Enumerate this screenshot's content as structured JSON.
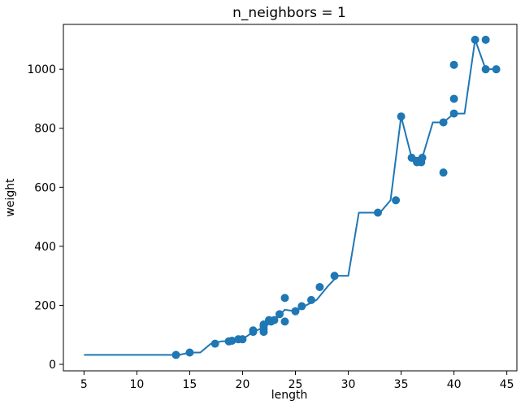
{
  "chart_data": {
    "type": "scatter",
    "title": "n_neighbors = 1",
    "xlabel": "length",
    "ylabel": "weight",
    "xlim": [
      3.05,
      45.95
    ],
    "ylim": [
      -22.0,
      1152.0
    ],
    "xticks": [
      5,
      10,
      15,
      20,
      25,
      30,
      35,
      40,
      45
    ],
    "yticks": [
      0,
      200,
      400,
      600,
      800,
      1000
    ],
    "grid": false,
    "colors": {
      "series": "#1f77b4"
    },
    "series": [
      {
        "type": "scatter",
        "x": [
          13.7,
          15.0,
          17.4,
          18.7,
          19.0,
          19.6,
          20.0,
          21.0,
          21.0,
          22.0,
          22.0,
          22.0,
          22.0,
          22.5,
          22.7,
          23.0,
          23.5,
          24.0,
          24.0,
          25.0,
          25.6,
          26.5,
          27.3,
          28.7,
          32.8,
          34.5,
          35.0,
          36.0,
          36.5,
          36.9,
          37.0,
          39.0,
          39.0,
          40.0,
          40.0,
          40.0,
          42.0,
          43.0,
          43.0,
          44.0
        ],
        "y": [
          32,
          40,
          70,
          78,
          80,
          85,
          85,
          110,
          115,
          110,
          120,
          130,
          135,
          150,
          145,
          150,
          170,
          225,
          145,
          180,
          197,
          218,
          262,
          300,
          514,
          556,
          840,
          700,
          685,
          685,
          700,
          650,
          820,
          850,
          900,
          1015,
          1100,
          1000,
          1100,
          1000
        ]
      },
      {
        "type": "line",
        "x": [
          5,
          6,
          7,
          8,
          9,
          10,
          11,
          12,
          13,
          14,
          15,
          16,
          17,
          18,
          19,
          20,
          21,
          22,
          23,
          24,
          25,
          26,
          27,
          28,
          29,
          30,
          31,
          32,
          33,
          34,
          35,
          36,
          37,
          38,
          39,
          40,
          41,
          42,
          43,
          44
        ],
        "y": [
          32,
          32,
          32,
          32,
          32,
          32,
          32,
          32,
          32,
          32,
          40,
          40,
          70,
          78,
          80,
          85,
          110,
          125,
          150,
          185,
          180,
          200,
          218,
          262,
          300,
          300,
          514,
          514,
          514,
          556,
          840,
          700,
          700,
          820,
          820,
          850,
          850,
          1100,
          1000,
          1000
        ]
      }
    ]
  }
}
